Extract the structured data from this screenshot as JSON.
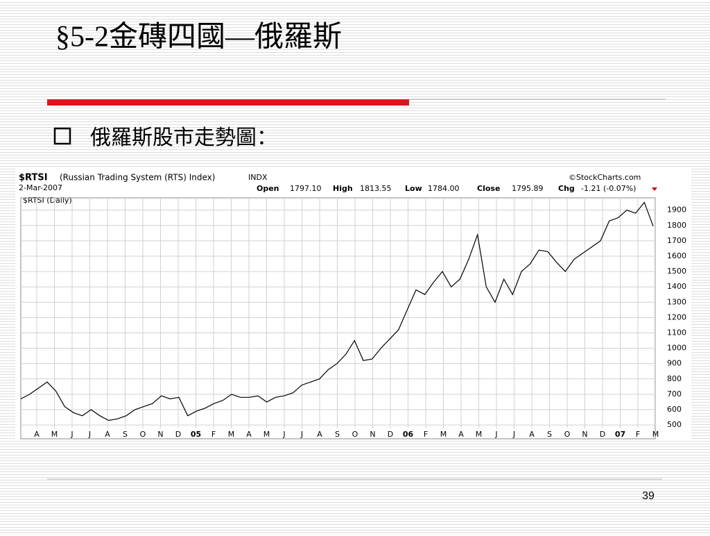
{
  "slide": {
    "title": "§5-2金磚四國—俄羅斯",
    "bullet": "俄羅斯股市走勢圖：",
    "page_number": "39"
  },
  "chart_data": {
    "type": "line",
    "header": {
      "symbol": "$RTSI",
      "name": "(Russian Trading System (RTS) Index)",
      "exchange": "INDX",
      "date": "2-Mar-2007",
      "open_label": "Open",
      "open": "1797.10",
      "high_label": "High",
      "high": "1813.55",
      "low_label": "Low",
      "low": "1784.00",
      "close_label": "Close",
      "close": "1795.89",
      "chg_label": "Chg",
      "chg": "-1.21 (-0.07%)",
      "source": "©StockCharts.com",
      "legend": "$RTSI (Daily)"
    },
    "xticks": [
      "A",
      "M",
      "J",
      "J",
      "A",
      "S",
      "O",
      "N",
      "D",
      "05",
      "F",
      "M",
      "A",
      "M",
      "J",
      "J",
      "A",
      "S",
      "O",
      "N",
      "D",
      "06",
      "F",
      "M",
      "A",
      "M",
      "J",
      "J",
      "A",
      "S",
      "O",
      "N",
      "D",
      "07",
      "F",
      "M"
    ],
    "series": [
      {
        "name": "$RTSI (Daily)",
        "color": "#000000",
        "values": [
          670,
          700,
          740,
          780,
          720,
          620,
          580,
          560,
          600,
          560,
          530,
          540,
          560,
          600,
          620,
          640,
          690,
          670,
          680,
          560,
          590,
          610,
          640,
          660,
          700,
          680,
          680,
          690,
          650,
          680,
          690,
          710,
          760,
          780,
          800,
          860,
          900,
          960,
          1050,
          920,
          930,
          1000,
          1060,
          1120,
          1250,
          1380,
          1350,
          1430,
          1500,
          1400,
          1450,
          1580,
          1740,
          1400,
          1300,
          1450,
          1350,
          1500,
          1550,
          1640,
          1630,
          1560,
          1500,
          1580,
          1620,
          1660,
          1700,
          1830,
          1850,
          1900,
          1880,
          1950,
          1795.89
        ]
      }
    ],
    "ylim": [
      410,
      1980
    ],
    "yticks": [
      500,
      600,
      700,
      800,
      900,
      1000,
      1100,
      1200,
      1300,
      1400,
      1500,
      1600,
      1700,
      1800,
      1900
    ],
    "grid": true
  }
}
